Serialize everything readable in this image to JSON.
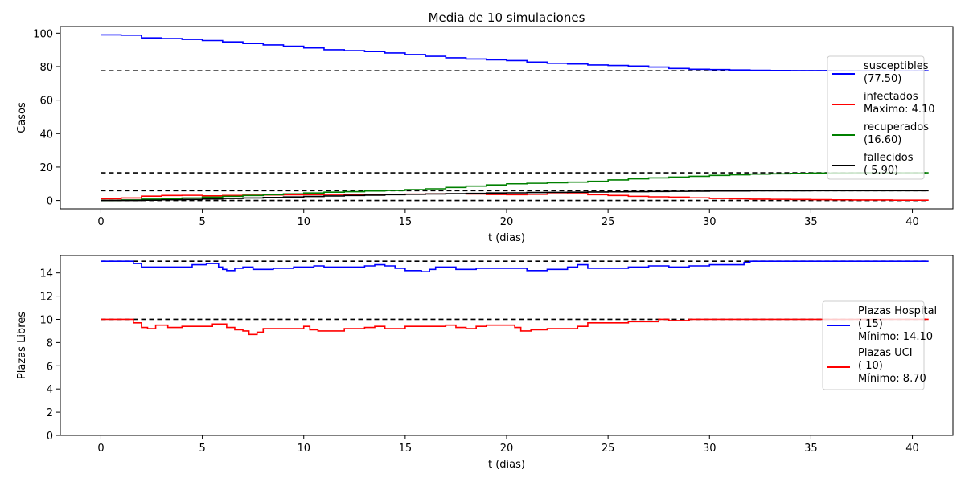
{
  "chart_data": [
    {
      "type": "line",
      "title": "Media de 10 simulaciones",
      "xlabel": "t (dias)",
      "ylabel": "Casos",
      "xlim": [
        -2,
        42
      ],
      "ylim": [
        -5,
        104
      ],
      "xticks": [
        0,
        5,
        10,
        15,
        20,
        25,
        30,
        35,
        40
      ],
      "yticks": [
        0,
        20,
        40,
        60,
        80,
        100
      ],
      "grid": false,
      "legend_position": "right",
      "series": [
        {
          "name": "susceptibles",
          "legend_lines": [
            "susceptibles",
            "(77.50)"
          ],
          "color": "#0000ff",
          "step": true,
          "x": [
            0,
            1,
            2,
            3,
            4,
            5,
            6,
            7,
            8,
            9,
            10,
            11,
            12,
            13,
            14,
            15,
            16,
            17,
            18,
            19,
            20,
            21,
            22,
            23,
            24,
            25,
            26,
            27,
            28,
            29,
            30,
            31,
            32,
            33,
            34,
            35,
            36,
            37,
            38,
            39,
            40,
            40.8
          ],
          "y": [
            99.0,
            98.8,
            97.2,
            96.8,
            96.3,
            95.6,
            94.8,
            93.8,
            93.0,
            92.2,
            91.2,
            90.1,
            89.6,
            89.0,
            88.2,
            87.2,
            86.2,
            85.3,
            84.6,
            84.1,
            83.6,
            82.7,
            82.0,
            81.6,
            81.0,
            80.7,
            80.3,
            79.7,
            78.9,
            78.4,
            78.2,
            78.0,
            77.8,
            77.7,
            77.6,
            77.6,
            77.5,
            77.5,
            77.5,
            77.5,
            77.5,
            77.5
          ]
        },
        {
          "name": "infectados",
          "legend_lines": [
            "infectados",
            "Maximo:  4.10"
          ],
          "color": "#ff0000",
          "step": true,
          "x": [
            0,
            1,
            2,
            3,
            4,
            5,
            6,
            7,
            8,
            9,
            10,
            11,
            12,
            13,
            14,
            15,
            16,
            17,
            18,
            19,
            20,
            21,
            22,
            23,
            24,
            25,
            26,
            27,
            28,
            29,
            30,
            31,
            32,
            33,
            34,
            35,
            36,
            37,
            38,
            39,
            40,
            40.8
          ],
          "y": [
            1.0,
            1.5,
            2.6,
            3.0,
            3.1,
            2.8,
            3.0,
            3.2,
            3.3,
            3.4,
            3.5,
            3.6,
            3.6,
            3.5,
            3.6,
            3.8,
            4.0,
            4.0,
            3.9,
            3.6,
            3.5,
            3.7,
            4.0,
            4.1,
            3.5,
            3.0,
            2.5,
            2.2,
            2.0,
            1.6,
            1.2,
            1.0,
            0.8,
            0.7,
            0.6,
            0.5,
            0.4,
            0.3,
            0.3,
            0.2,
            0.2,
            0.2
          ]
        },
        {
          "name": "recuperados",
          "legend_lines": [
            "recuperados",
            "(16.60)"
          ],
          "color": "#008000",
          "step": true,
          "x": [
            0,
            1,
            2,
            3,
            4,
            5,
            6,
            7,
            8,
            9,
            10,
            11,
            12,
            13,
            14,
            15,
            16,
            17,
            18,
            19,
            20,
            21,
            22,
            23,
            24,
            25,
            26,
            27,
            28,
            29,
            30,
            31,
            32,
            33,
            34,
            35,
            36,
            37,
            38,
            39,
            40,
            40.8
          ],
          "y": [
            0.0,
            0.3,
            0.8,
            1.1,
            1.5,
            2.0,
            2.5,
            3.0,
            3.5,
            4.0,
            4.5,
            5.0,
            5.3,
            5.7,
            6.0,
            6.5,
            7.0,
            7.8,
            8.6,
            9.3,
            10.0,
            10.3,
            10.6,
            11.0,
            11.5,
            12.3,
            13.0,
            13.5,
            14.0,
            14.5,
            15.0,
            15.4,
            15.8,
            16.0,
            16.2,
            16.4,
            16.5,
            16.6,
            16.6,
            16.6,
            16.6,
            16.6
          ]
        },
        {
          "name": "fallecidos",
          "legend_lines": [
            "fallecidos",
            "( 5.90)"
          ],
          "color": "#000000",
          "step": true,
          "x": [
            0,
            1,
            2,
            3,
            4,
            5,
            6,
            7,
            8,
            9,
            10,
            11,
            12,
            13,
            14,
            15,
            16,
            17,
            18,
            19,
            20,
            21,
            22,
            23,
            24,
            25,
            26,
            27,
            28,
            29,
            30,
            31,
            32,
            33,
            34,
            35,
            36,
            37,
            38,
            39,
            40,
            40.8
          ],
          "y": [
            0.0,
            0.0,
            0.2,
            0.4,
            0.6,
            0.9,
            1.2,
            1.5,
            1.8,
            2.1,
            2.4,
            2.7,
            3.0,
            3.2,
            3.5,
            3.7,
            3.9,
            4.1,
            4.3,
            4.5,
            4.6,
            4.8,
            4.9,
            5.0,
            5.1,
            5.2,
            5.3,
            5.4,
            5.5,
            5.6,
            5.7,
            5.7,
            5.8,
            5.8,
            5.8,
            5.9,
            5.9,
            5.9,
            5.9,
            5.9,
            5.9,
            5.9
          ]
        }
      ],
      "reference_lines": [
        {
          "y": 77.5,
          "color": "#000000",
          "style": "dashed",
          "x": [
            0,
            40.8
          ]
        },
        {
          "y": 16.6,
          "color": "#000000",
          "style": "dashed",
          "x": [
            0,
            40.8
          ]
        },
        {
          "y": 5.9,
          "color": "#000000",
          "style": "dashed",
          "x": [
            0,
            40.8
          ]
        },
        {
          "y": 0,
          "color": "#000000",
          "style": "dashed",
          "x": [
            0,
            40.8
          ]
        }
      ]
    },
    {
      "type": "line",
      "title": "",
      "xlabel": "t (dias)",
      "ylabel": "Plazas Libres",
      "xlim": [
        -2,
        42
      ],
      "ylim": [
        0,
        15.5
      ],
      "xticks": [
        0,
        5,
        10,
        15,
        20,
        25,
        30,
        35,
        40
      ],
      "yticks": [
        0,
        2,
        4,
        6,
        8,
        10,
        12,
        14
      ],
      "grid": false,
      "legend_position": "right",
      "series": [
        {
          "name": "Plazas Hospital",
          "legend_lines": [
            "Plazas Hospital",
            "( 15)",
            "Mínimo: 14.10"
          ],
          "color": "#0000ff",
          "step": true,
          "x": [
            0,
            1.6,
            2.0,
            2.5,
            3.5,
            4.5,
            5.2,
            5.8,
            6.0,
            6.2,
            6.6,
            7.0,
            7.5,
            8.5,
            9.5,
            10.5,
            11.0,
            12.0,
            13.0,
            13.5,
            14.0,
            14.5,
            15.0,
            15.8,
            16.2,
            16.5,
            17.5,
            18.5,
            19.5,
            20.5,
            21.0,
            22.0,
            23.0,
            23.5,
            24.0,
            25.0,
            26.0,
            27.0,
            28.0,
            29.0,
            30.0,
            31.0,
            31.7,
            32.0,
            34.0,
            36.0,
            38.0,
            40.0,
            40.8
          ],
          "y": [
            15.0,
            14.8,
            14.5,
            14.5,
            14.5,
            14.7,
            14.8,
            14.5,
            14.3,
            14.2,
            14.4,
            14.5,
            14.3,
            14.4,
            14.5,
            14.6,
            14.5,
            14.5,
            14.6,
            14.7,
            14.6,
            14.4,
            14.2,
            14.1,
            14.3,
            14.5,
            14.3,
            14.4,
            14.4,
            14.4,
            14.2,
            14.3,
            14.5,
            14.7,
            14.4,
            14.4,
            14.5,
            14.6,
            14.5,
            14.6,
            14.7,
            14.7,
            14.9,
            15.0,
            15.0,
            15.0,
            15.0,
            15.0,
            15.0
          ]
        },
        {
          "name": "Plazas UCI",
          "legend_lines": [
            "Plazas UCI",
            "( 10)",
            "Mínimo:  8.70"
          ],
          "color": "#ff0000",
          "step": true,
          "x": [
            0,
            1.6,
            2.0,
            2.3,
            2.7,
            3.3,
            4.0,
            4.8,
            5.5,
            5.8,
            6.2,
            6.6,
            7.0,
            7.3,
            7.7,
            8.0,
            9.0,
            10.0,
            10.3,
            10.7,
            11.2,
            12.0,
            13.0,
            13.5,
            14.0,
            15.0,
            16.0,
            17.0,
            17.5,
            18.0,
            18.5,
            19.0,
            20.0,
            20.4,
            20.7,
            21.2,
            22.0,
            23.0,
            23.5,
            24.0,
            25.0,
            26.0,
            27.0,
            27.5,
            28.0,
            29.0,
            30.0,
            32.0,
            34.0,
            36.0,
            38.0,
            40.0,
            40.8
          ],
          "y": [
            10.0,
            9.7,
            9.3,
            9.2,
            9.5,
            9.3,
            9.4,
            9.4,
            9.6,
            9.6,
            9.3,
            9.1,
            9.0,
            8.7,
            8.9,
            9.2,
            9.2,
            9.4,
            9.1,
            9.0,
            9.0,
            9.2,
            9.3,
            9.4,
            9.2,
            9.4,
            9.4,
            9.5,
            9.3,
            9.2,
            9.4,
            9.5,
            9.5,
            9.3,
            9.0,
            9.1,
            9.2,
            9.2,
            9.4,
            9.7,
            9.7,
            9.8,
            9.8,
            10.0,
            9.9,
            10.0,
            10.0,
            10.0,
            10.0,
            10.0,
            10.0,
            10.0,
            10.0
          ]
        }
      ],
      "reference_lines": [
        {
          "y": 15,
          "color": "#000000",
          "style": "dashed",
          "x": [
            0,
            40.8
          ]
        },
        {
          "y": 10,
          "color": "#000000",
          "style": "dashed",
          "x": [
            0,
            40.8
          ]
        }
      ]
    }
  ]
}
